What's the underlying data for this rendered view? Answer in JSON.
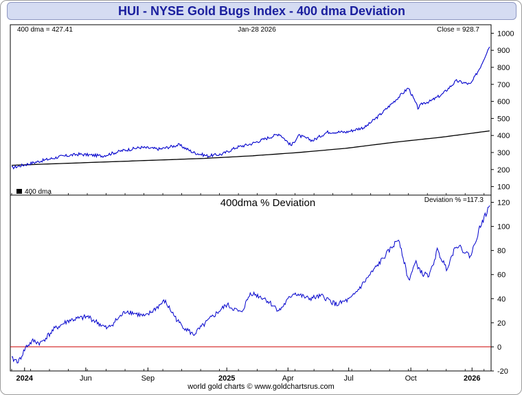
{
  "title": "HUI - NYSE Gold Bugs Index - 400 dma Deviation",
  "footer": "world gold charts © www.goldchartsrus.com",
  "chart_data": [
    {
      "type": "line",
      "name": "price-panel",
      "header": {
        "left": "400 dma = 427.41",
        "center": "Jan-28  2026",
        "right": "Close = 928.7"
      },
      "legend": "400 dma",
      "ylim": [
        50,
        1050
      ],
      "yticks": [
        100,
        200,
        300,
        400,
        500,
        600,
        700,
        800,
        900,
        1000
      ],
      "colors": {
        "price": "#0000cc",
        "dma": "#000000"
      },
      "series": [
        {
          "name": "HUI",
          "x": [
            0,
            0.03,
            0.06,
            0.1,
            0.14,
            0.19,
            0.23,
            0.27,
            0.31,
            0.35,
            0.38,
            0.41,
            0.44,
            0.47,
            0.5,
            0.53,
            0.56,
            0.585,
            0.6,
            0.63,
            0.66,
            0.7,
            0.74,
            0.77,
            0.8,
            0.83,
            0.85,
            0.86,
            0.875,
            0.9,
            0.93,
            0.96,
            0.98,
            1.0
          ],
          "values": [
            210,
            230,
            250,
            275,
            290,
            280,
            310,
            330,
            320,
            345,
            300,
            280,
            290,
            330,
            350,
            380,
            410,
            340,
            400,
            370,
            420,
            420,
            450,
            520,
            600,
            680,
            560,
            590,
            600,
            640,
            720,
            700,
            800,
            928
          ]
        },
        {
          "name": "400 dma",
          "x": [
            0,
            0.1,
            0.2,
            0.3,
            0.4,
            0.5,
            0.6,
            0.7,
            0.8,
            0.9,
            1.0
          ],
          "values": [
            225,
            235,
            245,
            255,
            265,
            280,
            300,
            325,
            360,
            390,
            427
          ]
        }
      ]
    },
    {
      "type": "line",
      "name": "deviation-panel",
      "title": "400dma  %  Deviation",
      "header_right": "Deviation % =117.3",
      "ylim": [
        -20,
        126
      ],
      "yticks": [
        -20,
        0,
        20,
        40,
        60,
        80,
        100,
        120
      ],
      "zero_line_color": "#cc0000",
      "series_color": "#0000cc",
      "xticks": [
        "2024",
        "Jun",
        "Sep",
        "2025",
        "Apr",
        "Jul",
        "Oct",
        "2026"
      ],
      "series": [
        {
          "name": "Deviation %",
          "x": [
            0,
            0.015,
            0.03,
            0.045,
            0.06,
            0.09,
            0.12,
            0.16,
            0.2,
            0.24,
            0.28,
            0.32,
            0.35,
            0.38,
            0.42,
            0.45,
            0.48,
            0.5,
            0.53,
            0.56,
            0.59,
            0.62,
            0.65,
            0.68,
            0.71,
            0.74,
            0.78,
            0.81,
            0.83,
            0.845,
            0.86,
            0.875,
            0.89,
            0.91,
            0.93,
            0.96,
            0.98,
            1.0
          ],
          "values": [
            -10,
            -12,
            0,
            5,
            3,
            15,
            22,
            25,
            15,
            30,
            25,
            38,
            20,
            10,
            25,
            35,
            28,
            45,
            40,
            30,
            45,
            40,
            42,
            35,
            40,
            55,
            75,
            90,
            55,
            70,
            60,
            60,
            80,
            65,
            85,
            75,
            100,
            117
          ]
        }
      ]
    }
  ]
}
